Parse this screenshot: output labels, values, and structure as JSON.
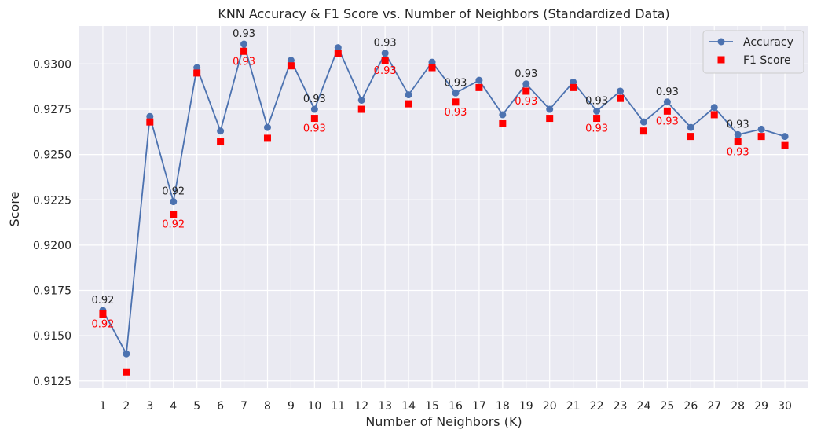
{
  "chart_data": {
    "type": "line",
    "title": "KNN Accuracy & F1 Score vs. Number of Neighbors (Standardized Data)",
    "xlabel": "Number of Neighbors (K)",
    "ylabel": "Score",
    "x": [
      1,
      2,
      3,
      4,
      5,
      6,
      7,
      8,
      9,
      10,
      11,
      12,
      13,
      14,
      15,
      16,
      17,
      18,
      19,
      20,
      21,
      22,
      23,
      24,
      25,
      26,
      27,
      28,
      29,
      30
    ],
    "xlim": [
      0,
      31
    ],
    "ylim": [
      0.9121,
      0.9321
    ],
    "yticks": [
      0.9125,
      0.915,
      0.9175,
      0.92,
      0.9225,
      0.925,
      0.9275,
      0.93
    ],
    "ytick_labels": [
      "0.9125",
      "0.9150",
      "0.9175",
      "0.9200",
      "0.9225",
      "0.9250",
      "0.9275",
      "0.9300"
    ],
    "grid": true,
    "legend_position": "top-right",
    "series": [
      {
        "name": "Accuracy",
        "style": "line-marker",
        "color": "#4c72b0",
        "values": [
          0.9164,
          0.914,
          0.9271,
          0.9224,
          0.9298,
          0.9263,
          0.9311,
          0.9265,
          0.9302,
          0.9275,
          0.9309,
          0.928,
          0.9306,
          0.9283,
          0.9301,
          0.9284,
          0.9291,
          0.9272,
          0.9289,
          0.9275,
          0.929,
          0.9274,
          0.9285,
          0.9268,
          0.9279,
          0.9265,
          0.9276,
          0.9261,
          0.9264,
          0.926
        ]
      },
      {
        "name": "F1 Score",
        "style": "marker",
        "color": "#ff0000",
        "values": [
          0.9162,
          0.913,
          0.9268,
          0.9217,
          0.9295,
          0.9257,
          0.9307,
          0.9259,
          0.9299,
          0.927,
          0.9306,
          0.9275,
          0.9302,
          0.9278,
          0.9298,
          0.9279,
          0.9287,
          0.9267,
          0.9285,
          0.927,
          0.9287,
          0.927,
          0.9281,
          0.9263,
          0.9274,
          0.926,
          0.9272,
          0.9257,
          0.926,
          0.9255
        ]
      }
    ],
    "annotations": [
      {
        "series": "Accuracy",
        "k": 1,
        "text": "0.92"
      },
      {
        "series": "F1 Score",
        "k": 1,
        "text": "0.92"
      },
      {
        "series": "Accuracy",
        "k": 4,
        "text": "0.92"
      },
      {
        "series": "F1 Score",
        "k": 4,
        "text": "0.92"
      },
      {
        "series": "Accuracy",
        "k": 7,
        "text": "0.93"
      },
      {
        "series": "F1 Score",
        "k": 7,
        "text": "0.93"
      },
      {
        "series": "Accuracy",
        "k": 10,
        "text": "0.93"
      },
      {
        "series": "F1 Score",
        "k": 10,
        "text": "0.93"
      },
      {
        "series": "Accuracy",
        "k": 13,
        "text": "0.93"
      },
      {
        "series": "F1 Score",
        "k": 13,
        "text": "0.93"
      },
      {
        "series": "Accuracy",
        "k": 16,
        "text": "0.93"
      },
      {
        "series": "F1 Score",
        "k": 16,
        "text": "0.93"
      },
      {
        "series": "Accuracy",
        "k": 19,
        "text": "0.93"
      },
      {
        "series": "F1 Score",
        "k": 19,
        "text": "0.93"
      },
      {
        "series": "Accuracy",
        "k": 22,
        "text": "0.93"
      },
      {
        "series": "F1 Score",
        "k": 22,
        "text": "0.93"
      },
      {
        "series": "Accuracy",
        "k": 25,
        "text": "0.93"
      },
      {
        "series": "F1 Score",
        "k": 25,
        "text": "0.93"
      },
      {
        "series": "Accuracy",
        "k": 28,
        "text": "0.93"
      },
      {
        "series": "F1 Score",
        "k": 28,
        "text": "0.93"
      }
    ]
  }
}
